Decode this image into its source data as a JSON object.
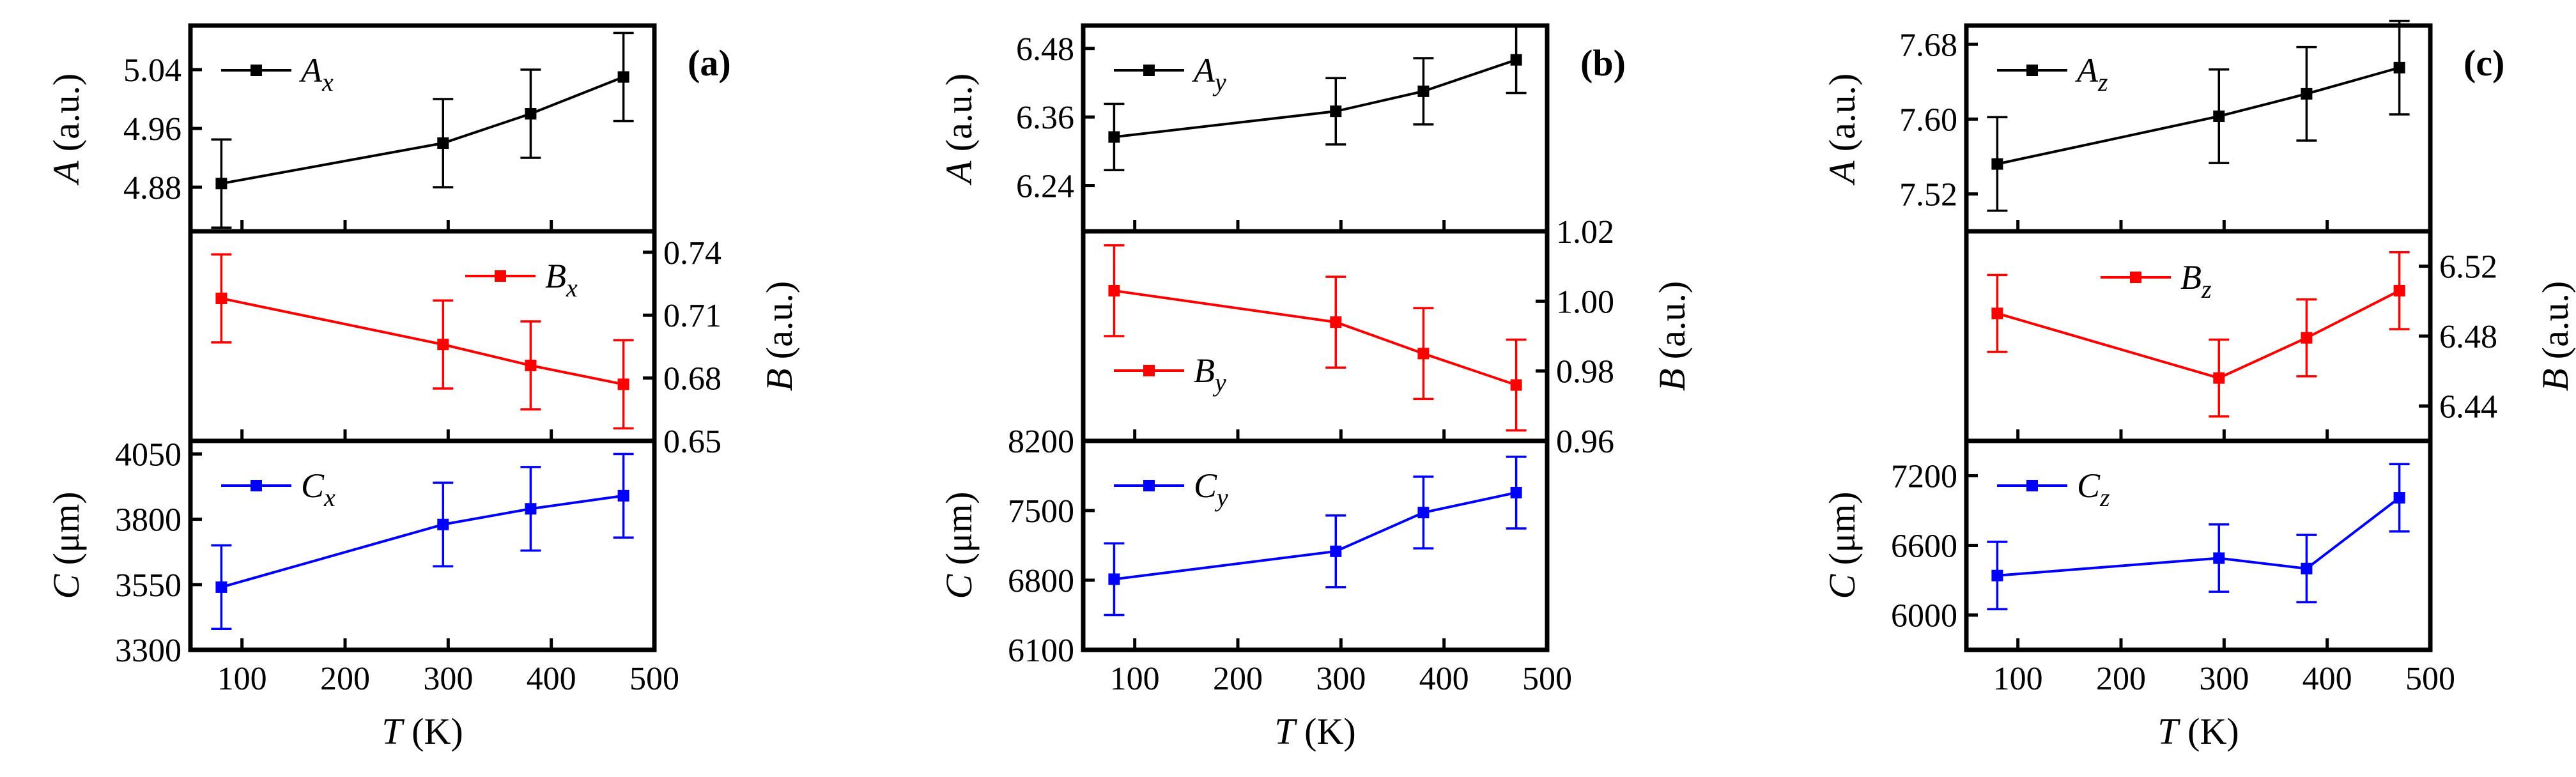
{
  "chart_data": [
    {
      "type": "line",
      "panel_label": "(a)",
      "xlabel": {
        "italic": "T",
        "rest": " (K)"
      },
      "xlim": [
        50,
        500
      ],
      "xticks": [
        100,
        200,
        300,
        400,
        500
      ],
      "x": [
        80,
        295,
        380,
        470
      ],
      "subplots": [
        {
          "key": "A",
          "color": "#000000",
          "axis_side": "left",
          "ylabel": {
            "italic": "A",
            "rest": " (a.u.)"
          },
          "ylim": [
            4.82,
            5.1
          ],
          "yticks": [
            4.88,
            4.96,
            5.04
          ],
          "series": {
            "name": "A",
            "sub": "x",
            "values": [
              4.885,
              4.94,
              4.98,
              5.03
            ],
            "errors": [
              0.06,
              0.06,
              0.06,
              0.06
            ]
          },
          "legend_pos": "top-left"
        },
        {
          "key": "B",
          "color": "#ff0000",
          "axis_side": "right",
          "ylabel": {
            "italic": "B",
            "rest": " (a.u.)"
          },
          "ylim": [
            0.65,
            0.75
          ],
          "yticks": [
            0.65,
            0.68,
            0.71,
            0.74
          ],
          "series": {
            "name": "B",
            "sub": "x",
            "values": [
              0.718,
              0.696,
              0.686,
              0.677
            ],
            "errors": [
              0.021,
              0.021,
              0.021,
              0.021
            ]
          },
          "legend_pos": "top-right"
        },
        {
          "key": "C",
          "color": "#0000ff",
          "axis_side": "left",
          "ylabel": {
            "italic": "C",
            "rest": " (μm)"
          },
          "ylim": [
            3300,
            4100
          ],
          "yticks": [
            3300,
            3550,
            3800,
            4050
          ],
          "series": {
            "name": "C",
            "sub": "x",
            "values": [
              3540,
              3780,
              3840,
              3890
            ],
            "errors": [
              160,
              160,
              160,
              160
            ]
          },
          "legend_pos": "top-left"
        }
      ]
    },
    {
      "type": "line",
      "panel_label": "(b)",
      "xlabel": {
        "italic": "T",
        "rest": " (K)"
      },
      "xlim": [
        50,
        500
      ],
      "xticks": [
        100,
        200,
        300,
        400,
        500
      ],
      "x": [
        80,
        295,
        380,
        470
      ],
      "subplots": [
        {
          "key": "A",
          "color": "#000000",
          "axis_side": "left",
          "ylabel": {
            "italic": "A",
            "rest": " (a.u.)"
          },
          "ylim": [
            6.16,
            6.52
          ],
          "yticks": [
            6.24,
            6.36,
            6.48
          ],
          "series": {
            "name": "A",
            "sub": "y",
            "values": [
              6.325,
              6.37,
              6.405,
              6.46
            ],
            "errors": [
              0.058,
              0.058,
              0.058,
              0.058
            ]
          },
          "legend_pos": "top-left"
        },
        {
          "key": "B",
          "color": "#ff0000",
          "axis_side": "right",
          "ylabel": {
            "italic": "B",
            "rest": " (a.u.)"
          },
          "ylim": [
            0.96,
            1.02
          ],
          "yticks": [
            0.96,
            0.98,
            1.0,
            1.02
          ],
          "series": {
            "name": "B",
            "sub": "y",
            "values": [
              1.003,
              0.994,
              0.985,
              0.976
            ],
            "errors": [
              0.013,
              0.013,
              0.013,
              0.013
            ]
          },
          "legend_pos": "bottom-left"
        },
        {
          "key": "C",
          "color": "#0000ff",
          "axis_side": "left",
          "ylabel": {
            "italic": "C",
            "rest": " (μm)"
          },
          "ylim": [
            6100,
            8200
          ],
          "yticks": [
            6100,
            6800,
            7500,
            8200
          ],
          "series": {
            "name": "C",
            "sub": "y",
            "values": [
              6810,
              7090,
              7480,
              7680
            ],
            "errors": [
              360,
              360,
              360,
              360
            ]
          },
          "legend_pos": "top-left"
        }
      ]
    },
    {
      "type": "line",
      "panel_label": "(c)",
      "xlabel": {
        "italic": "T",
        "rest": " (K)"
      },
      "xlim": [
        50,
        500
      ],
      "xticks": [
        100,
        200,
        300,
        400,
        500
      ],
      "x": [
        80,
        295,
        380,
        470
      ],
      "subplots": [
        {
          "key": "A",
          "color": "#000000",
          "axis_side": "left",
          "ylabel": {
            "italic": "A",
            "rest": " (a.u.)"
          },
          "ylim": [
            7.48,
            7.7
          ],
          "yticks": [
            7.52,
            7.6,
            7.68
          ],
          "series": {
            "name": "A",
            "sub": "z",
            "values": [
              7.552,
              7.603,
              7.627,
              7.655
            ],
            "errors": [
              0.05,
              0.05,
              0.05,
              0.05
            ]
          },
          "legend_pos": "top-left"
        },
        {
          "key": "B",
          "color": "#ff0000",
          "axis_side": "right",
          "ylabel": {
            "italic": "B",
            "rest": " (a.u.)"
          },
          "ylim": [
            6.42,
            6.54
          ],
          "yticks": [
            6.44,
            6.48,
            6.52
          ],
          "series": {
            "name": "B",
            "sub": "z",
            "values": [
              6.493,
              6.456,
              6.479,
              6.506
            ],
            "errors": [
              0.022,
              0.022,
              0.022,
              0.022
            ]
          },
          "legend_pos": "top-center"
        },
        {
          "key": "C",
          "color": "#0000ff",
          "axis_side": "left",
          "ylabel": {
            "italic": "C",
            "rest": " (μm)"
          },
          "ylim": [
            5700,
            7500
          ],
          "yticks": [
            6000,
            6600,
            7200
          ],
          "series": {
            "name": "C",
            "sub": "z",
            "values": [
              6340,
              6490,
              6400,
              7010
            ],
            "errors": [
              290,
              290,
              290,
              290
            ]
          },
          "legend_pos": "top-left"
        }
      ]
    }
  ]
}
